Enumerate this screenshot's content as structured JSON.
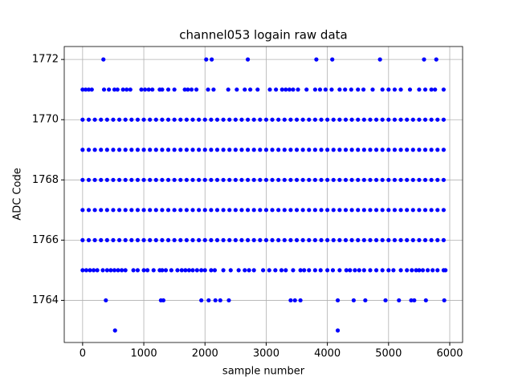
{
  "chart_data": {
    "type": "scatter",
    "title": "channel053 logain raw data",
    "x_label": "sample number",
    "y_label": "ADC Code",
    "color": "#0000ff",
    "grid": true,
    "xlim": [
      -300,
      6210
    ],
    "ylim": [
      1762.6,
      1772.43
    ],
    "xticks": [
      0,
      1000,
      2000,
      3000,
      4000,
      5000,
      6000
    ],
    "yticks": [
      1764,
      1766,
      1768,
      1770,
      1772
    ],
    "x": [
      340,
      2020,
      2110,
      2700,
      3820,
      4080,
      4860,
      5580,
      5780,
      530,
      4170,
      380,
      1280,
      1320,
      1940,
      2060,
      2170,
      2250,
      2390,
      3400,
      3470,
      3560,
      4170,
      4430,
      4620,
      4950,
      5170,
      5370,
      5420,
      5610,
      5910,
      0,
      50,
      100,
      150,
      350,
      430,
      520,
      570,
      660,
      720,
      780,
      960,
      1020,
      1080,
      1140,
      1260,
      1300,
      1400,
      1500,
      1670,
      1720,
      1780,
      1860,
      2050,
      2140,
      2380,
      2520,
      2650,
      2740,
      2860,
      3060,
      3160,
      3260,
      3320,
      3380,
      3440,
      3520,
      3660,
      3800,
      3880,
      3970,
      4070,
      4200,
      4290,
      4390,
      4500,
      4590,
      4740,
      4900,
      5000,
      5100,
      5200,
      5350,
      5500,
      5600,
      5700,
      5760,
      5900,
      0,
      60,
      120,
      180,
      240,
      330,
      400,
      460,
      520,
      580,
      640,
      700,
      830,
      900,
      1000,
      1060,
      1160,
      1260,
      1300,
      1360,
      1450,
      1550,
      1620,
      1680,
      1740,
      1800,
      1870,
      1940,
      2000,
      2100,
      2160,
      2300,
      2420,
      2550,
      2650,
      2720,
      2800,
      2950,
      3050,
      3150,
      3250,
      3320,
      3440,
      3560,
      3620,
      3700,
      3800,
      3890,
      4000,
      4090,
      4200,
      4310,
      4370,
      4450,
      4520,
      4600,
      4700,
      4800,
      4900,
      5000,
      5080,
      5200,
      5300,
      5380,
      5450,
      5500,
      5560,
      5640,
      5720,
      5800,
      5900,
      5930,
      0,
      100,
      200,
      300,
      400,
      500,
      600,
      700,
      800,
      900,
      1000,
      1100,
      1200,
      1300,
      1400,
      1500,
      1600,
      1700,
      1800,
      1900,
      2000,
      2100,
      2200,
      2300,
      2400,
      2500,
      2600,
      2700,
      2800,
      2900,
      3000,
      3100,
      3200,
      3300,
      3400,
      3500,
      3600,
      3700,
      3800,
      3900,
      4000,
      4100,
      4200,
      4300,
      4400,
      4500,
      4600,
      4700,
      4800,
      4900,
      5000,
      5100,
      5200,
      5300,
      5400,
      5500,
      5600,
      5700,
      5800,
      5900,
      0,
      100,
      200,
      300,
      400,
      500,
      600,
      700,
      800,
      900,
      1000,
      1100,
      1200,
      1300,
      1400,
      1500,
      1600,
      1700,
      1800,
      1900,
      2000,
      2100,
      2200,
      2300,
      2400,
      2500,
      2600,
      2700,
      2800,
      2900,
      3000,
      3100,
      3200,
      3300,
      3400,
      3500,
      3600,
      3700,
      3800,
      3900,
      4000,
      4100,
      4200,
      4300,
      4400,
      4500,
      4600,
      4700,
      4800,
      4900,
      5000,
      5100,
      5200,
      5300,
      5400,
      5500,
      5600,
      5700,
      5800,
      5900,
      0,
      100,
      200,
      300,
      400,
      500,
      600,
      700,
      800,
      900,
      1000,
      1100,
      1200,
      1300,
      1400,
      1500,
      1600,
      1700,
      1800,
      1900,
      2000,
      2100,
      2200,
      2300,
      2400,
      2500,
      2600,
      2700,
      2800,
      2900,
      3000,
      3100,
      3200,
      3300,
      3400,
      3500,
      3600,
      3700,
      3800,
      3900,
      4000,
      4100,
      4200,
      4300,
      4400,
      4500,
      4600,
      4700,
      4800,
      4900,
      5000,
      5100,
      5200,
      5300,
      5400,
      5500,
      5600,
      5700,
      5800,
      5900,
      0,
      100,
      200,
      300,
      400,
      500,
      600,
      700,
      800,
      900,
      1000,
      1100,
      1200,
      1300,
      1400,
      1500,
      1600,
      1700,
      1800,
      1900,
      2000,
      2100,
      2200,
      2300,
      2400,
      2500,
      2600,
      2700,
      2800,
      2900,
      3000,
      3100,
      3200,
      3300,
      3400,
      3500,
      3600,
      3700,
      3800,
      3900,
      4000,
      4100,
      4200,
      4300,
      4400,
      4500,
      4600,
      4700,
      4800,
      4900,
      5000,
      5100,
      5200,
      5300,
      5400,
      5500,
      5600,
      5700,
      5800,
      5900,
      0,
      100,
      200,
      300,
      400,
      500,
      600,
      700,
      800,
      900,
      1000,
      1100,
      1200,
      1300,
      1400,
      1500,
      1600,
      1700,
      1800,
      1900,
      2000,
      2100,
      2200,
      2300,
      2400,
      2500,
      2600,
      2700,
      2800,
      2900,
      3000,
      3100,
      3200,
      3300,
      3400,
      3500,
      3600,
      3700,
      3800,
      3900,
      4000,
      4100,
      4200,
      4300,
      4400,
      4500,
      4600,
      4700,
      4800,
      4900,
      5000,
      5100,
      5200,
      5300,
      5400,
      5500,
      5600,
      5700,
      5800,
      5900
    ],
    "y": [
      1772,
      1772,
      1772,
      1772,
      1772,
      1772,
      1772,
      1772,
      1772,
      1763,
      1763,
      1764,
      1764,
      1764,
      1764,
      1764,
      1764,
      1764,
      1764,
      1764,
      1764,
      1764,
      1764,
      1764,
      1764,
      1764,
      1764,
      1764,
      1764,
      1764,
      1764,
      1771,
      1771,
      1771,
      1771,
      1771,
      1771,
      1771,
      1771,
      1771,
      1771,
      1771,
      1771,
      1771,
      1771,
      1771,
      1771,
      1771,
      1771,
      1771,
      1771,
      1771,
      1771,
      1771,
      1771,
      1771,
      1771,
      1771,
      1771,
      1771,
      1771,
      1771,
      1771,
      1771,
      1771,
      1771,
      1771,
      1771,
      1771,
      1771,
      1771,
      1771,
      1771,
      1771,
      1771,
      1771,
      1771,
      1771,
      1771,
      1771,
      1771,
      1771,
      1771,
      1771,
      1771,
      1771,
      1771,
      1771,
      1771,
      1765,
      1765,
      1765,
      1765,
      1765,
      1765,
      1765,
      1765,
      1765,
      1765,
      1765,
      1765,
      1765,
      1765,
      1765,
      1765,
      1765,
      1765,
      1765,
      1765,
      1765,
      1765,
      1765,
      1765,
      1765,
      1765,
      1765,
      1765,
      1765,
      1765,
      1765,
      1765,
      1765,
      1765,
      1765,
      1765,
      1765,
      1765,
      1765,
      1765,
      1765,
      1765,
      1765,
      1765,
      1765,
      1765,
      1765,
      1765,
      1765,
      1765,
      1765,
      1765,
      1765,
      1765,
      1765,
      1765,
      1765,
      1765,
      1765,
      1765,
      1765,
      1765,
      1765,
      1765,
      1765,
      1765,
      1765,
      1765,
      1765,
      1765,
      1765,
      1765,
      1766,
      1766,
      1766,
      1766,
      1766,
      1766,
      1766,
      1766,
      1766,
      1766,
      1766,
      1766,
      1766,
      1766,
      1766,
      1766,
      1766,
      1766,
      1766,
      1766,
      1766,
      1766,
      1766,
      1766,
      1766,
      1766,
      1766,
      1766,
      1766,
      1766,
      1766,
      1766,
      1766,
      1766,
      1766,
      1766,
      1766,
      1766,
      1766,
      1766,
      1766,
      1766,
      1766,
      1766,
      1766,
      1766,
      1766,
      1766,
      1766,
      1766,
      1766,
      1766,
      1766,
      1766,
      1766,
      1766,
      1766,
      1766,
      1766,
      1766,
      1767,
      1767,
      1767,
      1767,
      1767,
      1767,
      1767,
      1767,
      1767,
      1767,
      1767,
      1767,
      1767,
      1767,
      1767,
      1767,
      1767,
      1767,
      1767,
      1767,
      1767,
      1767,
      1767,
      1767,
      1767,
      1767,
      1767,
      1767,
      1767,
      1767,
      1767,
      1767,
      1767,
      1767,
      1767,
      1767,
      1767,
      1767,
      1767,
      1767,
      1767,
      1767,
      1767,
      1767,
      1767,
      1767,
      1767,
      1767,
      1767,
      1767,
      1767,
      1767,
      1767,
      1767,
      1767,
      1767,
      1767,
      1767,
      1767,
      1767,
      1768,
      1768,
      1768,
      1768,
      1768,
      1768,
      1768,
      1768,
      1768,
      1768,
      1768,
      1768,
      1768,
      1768,
      1768,
      1768,
      1768,
      1768,
      1768,
      1768,
      1768,
      1768,
      1768,
      1768,
      1768,
      1768,
      1768,
      1768,
      1768,
      1768,
      1768,
      1768,
      1768,
      1768,
      1768,
      1768,
      1768,
      1768,
      1768,
      1768,
      1768,
      1768,
      1768,
      1768,
      1768,
      1768,
      1768,
      1768,
      1768,
      1768,
      1768,
      1768,
      1768,
      1768,
      1768,
      1768,
      1768,
      1768,
      1768,
      1768,
      1769,
      1769,
      1769,
      1769,
      1769,
      1769,
      1769,
      1769,
      1769,
      1769,
      1769,
      1769,
      1769,
      1769,
      1769,
      1769,
      1769,
      1769,
      1769,
      1769,
      1769,
      1769,
      1769,
      1769,
      1769,
      1769,
      1769,
      1769,
      1769,
      1769,
      1769,
      1769,
      1769,
      1769,
      1769,
      1769,
      1769,
      1769,
      1769,
      1769,
      1769,
      1769,
      1769,
      1769,
      1769,
      1769,
      1769,
      1769,
      1769,
      1769,
      1769,
      1769,
      1769,
      1769,
      1769,
      1769,
      1769,
      1769,
      1769,
      1769,
      1770,
      1770,
      1770,
      1770,
      1770,
      1770,
      1770,
      1770,
      1770,
      1770,
      1770,
      1770,
      1770,
      1770,
      1770,
      1770,
      1770,
      1770,
      1770,
      1770,
      1770,
      1770,
      1770,
      1770,
      1770,
      1770,
      1770,
      1770,
      1770,
      1770,
      1770,
      1770,
      1770,
      1770,
      1770,
      1770,
      1770,
      1770,
      1770,
      1770,
      1770,
      1770,
      1770,
      1770,
      1770,
      1770,
      1770,
      1770,
      1770,
      1770,
      1770,
      1770,
      1770,
      1770,
      1770,
      1770,
      1770,
      1770,
      1770,
      1770
    ]
  }
}
